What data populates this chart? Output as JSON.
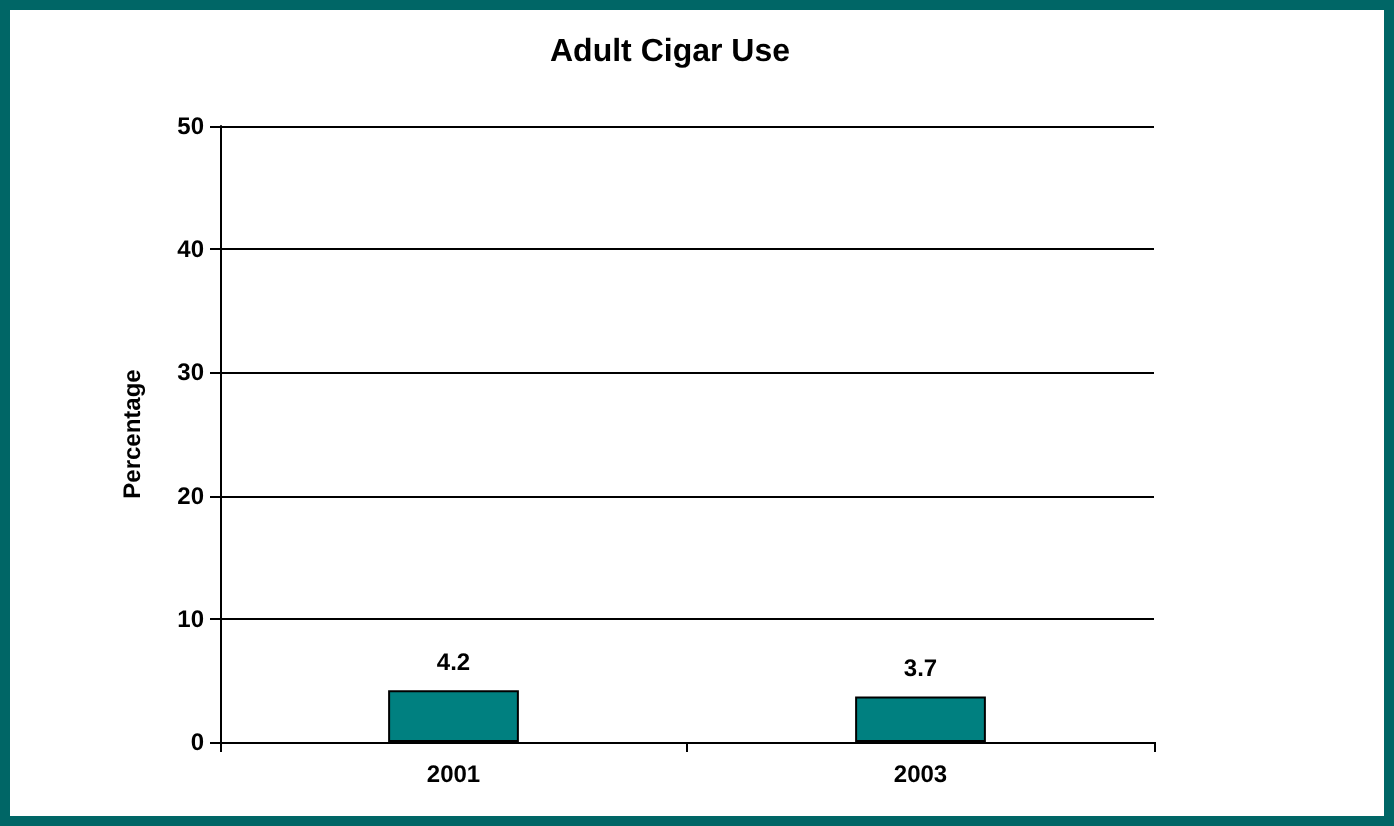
{
  "chart_data": {
    "type": "bar",
    "title": "Adult Cigar Use",
    "ylabel": "Percentage",
    "categories": [
      "2001",
      "2003"
    ],
    "values": [
      4.2,
      3.7
    ],
    "color": "#008080",
    "ylim": [
      0,
      50
    ],
    "yticks": [
      0,
      10,
      20,
      30,
      40,
      50
    ],
    "grid": "y",
    "data_labels": true
  }
}
